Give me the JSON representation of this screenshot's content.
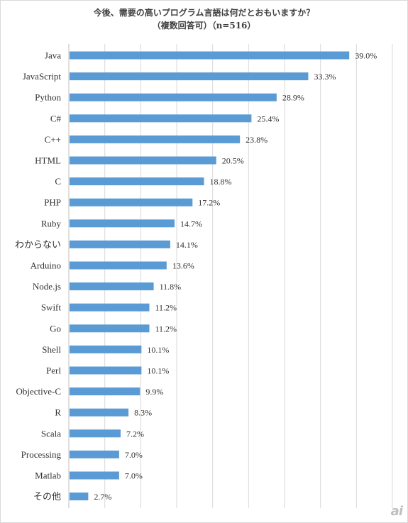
{
  "chart_data": {
    "type": "bar",
    "orientation": "horizontal",
    "title": "今後、需要の高いプログラム言語は何だとおもいますか？",
    "subtitle": "（複数回答可）（n=516）",
    "categories": [
      "Java",
      "JavaScript",
      "Python",
      "C#",
      "C++",
      "HTML",
      "C",
      "PHP",
      "Ruby",
      "わからない",
      "Arduino",
      "Node.js",
      "Swift",
      "Go",
      "Shell",
      "Perl",
      "Objective-C",
      "R",
      "Scala",
      "Processing",
      "Matlab",
      "その他"
    ],
    "values": [
      39.0,
      33.3,
      28.9,
      25.4,
      23.8,
      20.5,
      18.8,
      17.2,
      14.7,
      14.1,
      13.6,
      11.8,
      11.2,
      11.2,
      10.1,
      10.1,
      9.9,
      8.3,
      7.2,
      7.0,
      7.0,
      2.7
    ],
    "value_labels": [
      "39.0%",
      "33.3%",
      "28.9%",
      "25.4%",
      "23.8%",
      "20.5%",
      "18.8%",
      "17.2%",
      "14.7%",
      "14.1%",
      "13.6%",
      "11.8%",
      "11.2%",
      "11.2%",
      "10.1%",
      "10.1%",
      "9.9%",
      "8.3%",
      "7.2%",
      "7.0%",
      "7.0%",
      "2.7%"
    ],
    "xlim": [
      0,
      45
    ],
    "grid": "vertical",
    "color": "#5b9bd5",
    "gridColor": "#d9d9d9"
  },
  "watermark": "ai"
}
